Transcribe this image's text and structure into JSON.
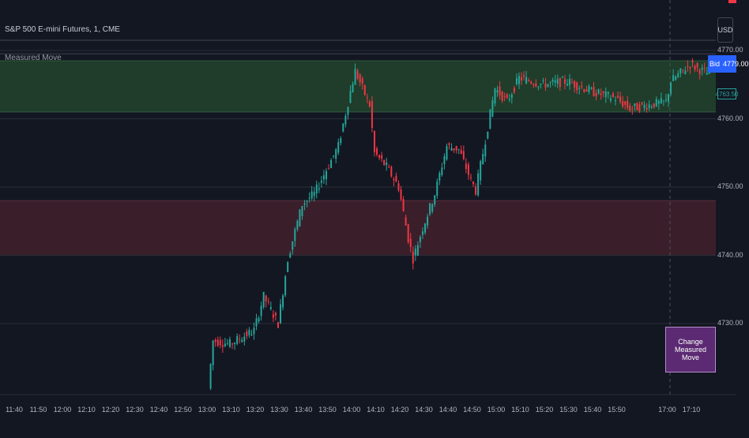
{
  "header": {
    "symbol_title": "S&P 500 E-mini Futures, 1, CME",
    "indicator_name": "Measured Move",
    "currency": "USD"
  },
  "price_tags": {
    "bid_label": "Bid",
    "bid_value": "4779.00",
    "last_value": "4763.50"
  },
  "change_button_label": "Change Measured Move",
  "colors": {
    "background": "#131722",
    "up": "#26a69a",
    "down": "#f23645",
    "upper_zone": "#1f3d2a",
    "lower_zone": "#3a1f2a",
    "bid": "#2962ff",
    "button": "#5b2a72"
  },
  "chart_data": {
    "type": "candlestick",
    "title": "S&P 500 E-mini Futures, 1, CME",
    "y_ticks": [
      "4770.00",
      "4760.00",
      "4750.00",
      "4740.00",
      "4730.00"
    ],
    "y_tick_values": [
      4770,
      4760,
      4750,
      4740,
      4730
    ],
    "x_ticks": [
      "11:40",
      "11:50",
      "12:00",
      "12:10",
      "12:20",
      "12:30",
      "12:40",
      "12:50",
      "13:00",
      "13:10",
      "13:20",
      "13:30",
      "13:40",
      "13:50",
      "14:00",
      "14:10",
      "14:20",
      "14:30",
      "14:40",
      "14:50",
      "15:00",
      "15:10",
      "15:20",
      "15:30",
      "15:40",
      "15:50",
      "17:00",
      "17:10"
    ],
    "zones": [
      {
        "name": "upper",
        "from": 4761.0,
        "to": 4768.5
      },
      {
        "name": "lower",
        "from": 4740.0,
        "to": 4748.0
      }
    ],
    "horizontal_levels": [
      4771.5,
      4769.5
    ],
    "price_path": [
      {
        "time": "13:01",
        "price": 4720.5
      },
      {
        "time": "13:03",
        "price": 4727.5
      },
      {
        "time": "13:10",
        "price": 4727.0
      },
      {
        "time": "13:20",
        "price": 4729.0
      },
      {
        "time": "13:24",
        "price": 4734.0
      },
      {
        "time": "13:30",
        "price": 4730.0
      },
      {
        "time": "13:34",
        "price": 4739.5
      },
      {
        "time": "13:40",
        "price": 4747.5
      },
      {
        "time": "13:45",
        "price": 4749.0
      },
      {
        "time": "13:50",
        "price": 4752.5
      },
      {
        "time": "13:55",
        "price": 4756.0
      },
      {
        "time": "14:00",
        "price": 4764.0
      },
      {
        "time": "14:02",
        "price": 4767.0
      },
      {
        "time": "14:08",
        "price": 4762.0
      },
      {
        "time": "14:10",
        "price": 4755.0
      },
      {
        "time": "14:15",
        "price": 4753.0
      },
      {
        "time": "14:20",
        "price": 4750.0
      },
      {
        "time": "14:24",
        "price": 4742.5
      },
      {
        "time": "14:26",
        "price": 4739.5
      },
      {
        "time": "14:30",
        "price": 4744.0
      },
      {
        "time": "14:35",
        "price": 4749.0
      },
      {
        "time": "14:40",
        "price": 4756.0
      },
      {
        "time": "14:45",
        "price": 4755.5
      },
      {
        "time": "14:50",
        "price": 4751.0
      },
      {
        "time": "14:52",
        "price": 4749.5
      },
      {
        "time": "14:55",
        "price": 4755.0
      },
      {
        "time": "15:00",
        "price": 4764.5
      },
      {
        "time": "15:05",
        "price": 4762.5
      },
      {
        "time": "15:10",
        "price": 4766.0
      },
      {
        "time": "15:20",
        "price": 4765.0
      },
      {
        "time": "15:30",
        "price": 4765.5
      },
      {
        "time": "15:40",
        "price": 4764.0
      },
      {
        "time": "15:50",
        "price": 4763.0
      },
      {
        "time": "15:56",
        "price": 4761.5
      },
      {
        "time": "17:00",
        "price": 4762.5
      },
      {
        "time": "17:02",
        "price": 4765.5
      },
      {
        "time": "17:10",
        "price": 4768.0
      },
      {
        "time": "17:15",
        "price": 4767.0
      },
      {
        "time": "17:18",
        "price": 4766.5
      }
    ]
  }
}
